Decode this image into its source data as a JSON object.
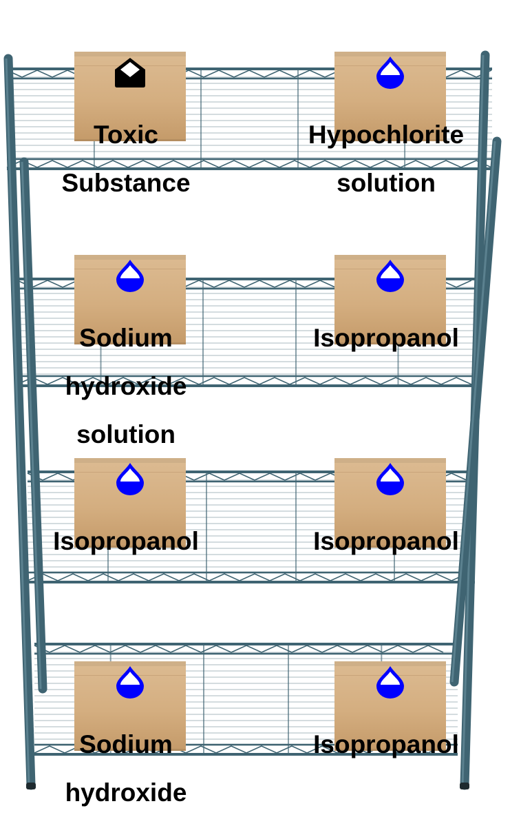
{
  "shelf": {
    "rack_color": "#3f6472",
    "box_color": "#d4ae80",
    "items": [
      {
        "id": "r1-left",
        "icon": "toxic-envelope-icon",
        "icon_color": "#000000",
        "lines": [
          "Toxic",
          "Substance"
        ]
      },
      {
        "id": "r1-right",
        "icon": "liquid-drop-icon",
        "icon_color": "#0000ff",
        "lines": [
          "Hypochlorite",
          "solution"
        ]
      },
      {
        "id": "r2-left",
        "icon": "liquid-drop-icon",
        "icon_color": "#0000ff",
        "lines": [
          "Sodium",
          "hydroxide",
          "solution"
        ]
      },
      {
        "id": "r2-right",
        "icon": "liquid-drop-icon",
        "icon_color": "#0000ff",
        "lines": [
          "Isopropanol"
        ]
      },
      {
        "id": "r3-left",
        "icon": "liquid-drop-icon",
        "icon_color": "#0000ff",
        "lines": [
          "Isopropanol"
        ]
      },
      {
        "id": "r3-right",
        "icon": "liquid-drop-icon",
        "icon_color": "#0000ff",
        "lines": [
          "Isopropanol"
        ]
      },
      {
        "id": "r4-left",
        "icon": "liquid-drop-icon",
        "icon_color": "#0000ff",
        "lines": [
          "Sodium",
          "hydroxide"
        ]
      },
      {
        "id": "r4-right",
        "icon": "liquid-drop-icon",
        "icon_color": "#0000ff",
        "lines": [
          "Isopropanol"
        ]
      }
    ]
  }
}
